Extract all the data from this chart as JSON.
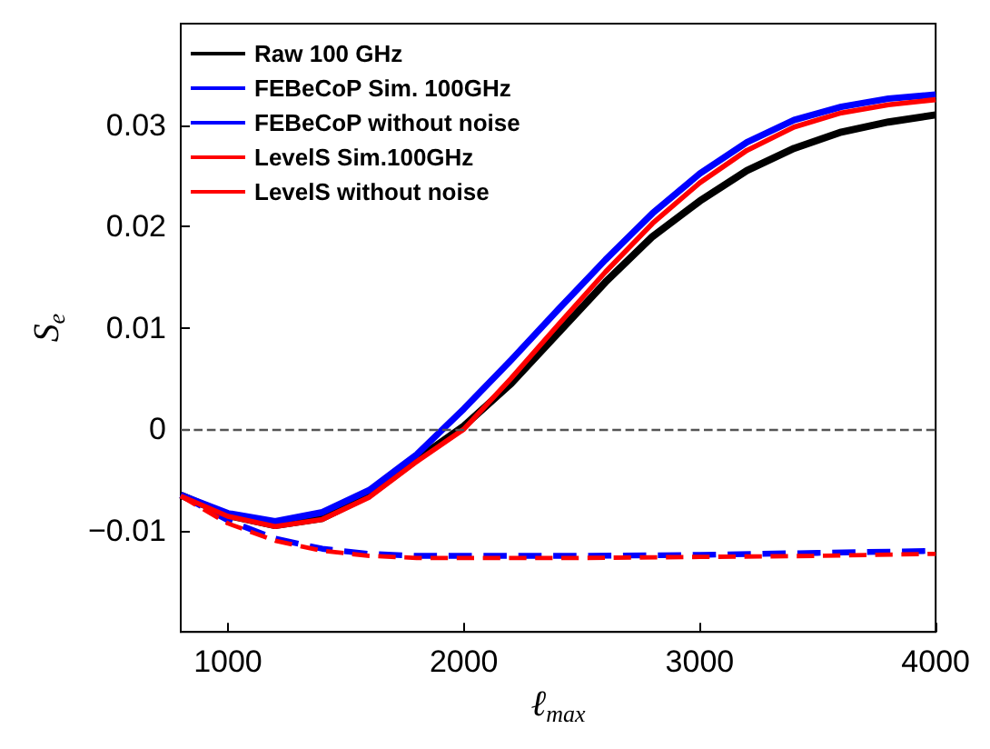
{
  "chart_data": {
    "type": "line",
    "xlabel": "ℓ$_{max}$",
    "ylabel": "S$_{e}$",
    "xlim": [
      800,
      4000
    ],
    "xticks": [
      1000,
      2000,
      3000,
      4000
    ],
    "ylim": [
      -0.02,
      0.04
    ],
    "yticks": [
      -0.01,
      0,
      0.01,
      0.02,
      0.03
    ],
    "grid": false,
    "legend": "top left",
    "marker": "none",
    "ref_lines": [
      {
        "axis": "y",
        "value": 0,
        "color": "#555555",
        "line_style": "dashed"
      }
    ],
    "series": [
      {
        "name": "Raw 100 GHz",
        "color": "#000000",
        "line_style": "solid",
        "x": [
          800,
          1000,
          1200,
          1400,
          1600,
          1800,
          2000,
          2200,
          2400,
          2600,
          2800,
          3000,
          3200,
          3400,
          3600,
          3800,
          4000
        ],
        "values": [
          -0.0065,
          -0.0085,
          -0.0095,
          -0.0088,
          -0.0065,
          -0.003,
          0.0003,
          0.0045,
          0.0095,
          0.0145,
          0.019,
          0.0225,
          0.0255,
          0.0277,
          0.0293,
          0.0303,
          0.031
        ]
      },
      {
        "name": "FEBeCoP Sim. 100GHz",
        "color": "#0000ff",
        "line_style": "solid",
        "x": [
          800,
          1000,
          1200,
          1400,
          1600,
          1800,
          2000,
          2200,
          2400,
          2600,
          2800,
          3000,
          3200,
          3400,
          3600,
          3800,
          4000
        ],
        "values": [
          -0.0065,
          -0.0083,
          -0.0091,
          -0.0082,
          -0.006,
          -0.0025,
          0.002,
          0.0068,
          0.0118,
          0.0167,
          0.0213,
          0.0252,
          0.0283,
          0.0305,
          0.0318,
          0.0326,
          0.033
        ]
      },
      {
        "name": "FEBeCoP without noise",
        "color": "#0000ff",
        "line_style": "dashed",
        "x": [
          800,
          1000,
          1200,
          1400,
          1600,
          1800,
          2000,
          2500,
          3000,
          3500,
          4000
        ],
        "values": [
          -0.0065,
          -0.009,
          -0.0108,
          -0.0118,
          -0.0123,
          -0.0125,
          -0.0125,
          -0.0125,
          -0.0124,
          -0.0122,
          -0.012
        ]
      },
      {
        "name": "LevelS Sim.100GHz",
        "color": "#ff0000",
        "line_style": "solid",
        "x": [
          800,
          1000,
          1200,
          1400,
          1600,
          1800,
          2000,
          2200,
          2400,
          2600,
          2800,
          3000,
          3200,
          3400,
          3600,
          3800,
          4000
        ],
        "values": [
          -0.0066,
          -0.0086,
          -0.0096,
          -0.0089,
          -0.0067,
          -0.0032,
          0.0,
          0.005,
          0.0103,
          0.0155,
          0.0203,
          0.0243,
          0.0275,
          0.0298,
          0.0312,
          0.032,
          0.0325
        ]
      },
      {
        "name": "LevelS without noise",
        "color": "#ff0000",
        "line_style": "dashed",
        "x": [
          800,
          1000,
          1200,
          1400,
          1600,
          1800,
          2000,
          2500,
          3000,
          3500,
          4000
        ],
        "values": [
          -0.0066,
          -0.0093,
          -0.011,
          -0.012,
          -0.0125,
          -0.0127,
          -0.0127,
          -0.0127,
          -0.0126,
          -0.0125,
          -0.0123
        ]
      }
    ]
  }
}
